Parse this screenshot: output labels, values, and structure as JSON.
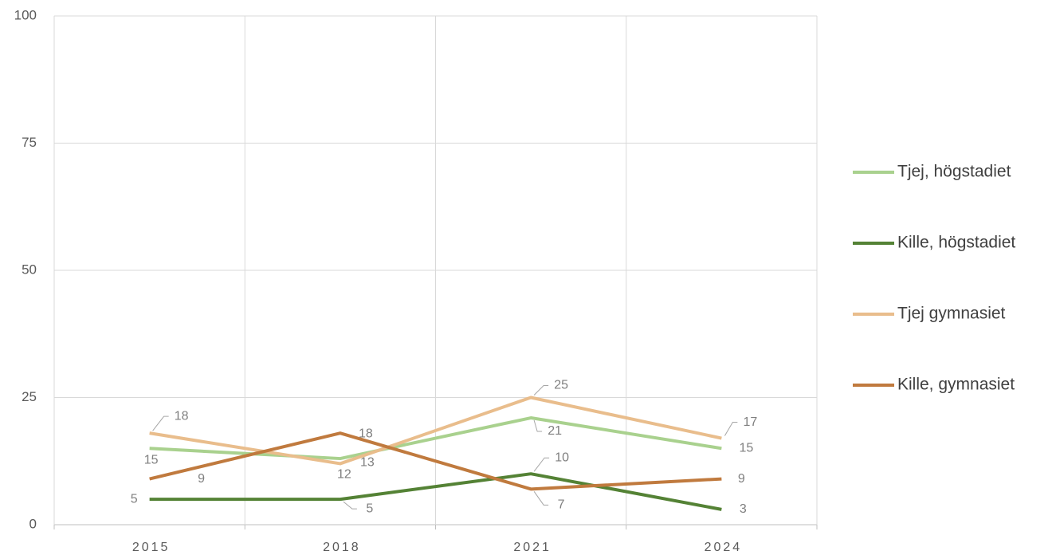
{
  "chart_data": {
    "type": "line",
    "categories": [
      "2015",
      "2018",
      "2021",
      "2024"
    ],
    "series": [
      {
        "name": "Tjej, högstadiet",
        "color": "#a9d18e",
        "values": [
          15,
          13,
          21,
          15
        ]
      },
      {
        "name": "Kille, högstadiet",
        "color": "#548235",
        "values": [
          5,
          5,
          10,
          3
        ]
      },
      {
        "name": "Tjej gymnasiet",
        "color": "#e9bd8c",
        "values": [
          18,
          12,
          25,
          17
        ]
      },
      {
        "name": "Kille, gymnasiet",
        "color": "#c07a3e",
        "values": [
          9,
          18,
          7,
          9
        ]
      }
    ],
    "ylim": [
      0,
      100
    ],
    "yticks": [
      0,
      25,
      50,
      75,
      100
    ],
    "grid": true,
    "legend": "right"
  }
}
